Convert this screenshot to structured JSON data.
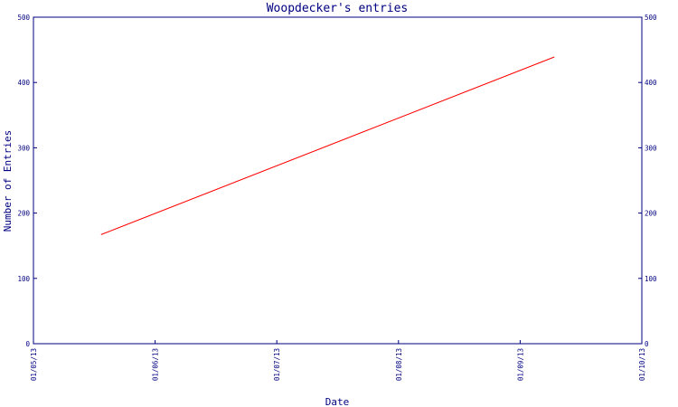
{
  "chart_data": {
    "type": "line",
    "title": "Woopdecker's entries",
    "xlabel": "Date",
    "ylabel": "Number of Entries",
    "x_ticks": [
      "01/05/13",
      "01/06/13",
      "01/07/13",
      "01/08/13",
      "01/09/13",
      "01/10/13"
    ],
    "y_ticks": [
      "0",
      "100",
      "200",
      "300",
      "400",
      "500"
    ],
    "ylim": [
      0,
      500
    ],
    "xlim": [
      "2013-05-01",
      "2013-10-01"
    ],
    "series": [
      {
        "x": [
          "2013-05-18",
          "2013-09-09"
        ],
        "values": [
          167,
          439
        ]
      }
    ],
    "grid": false,
    "colors": {
      "axes": "#000080",
      "text": "#000080",
      "line": "#ff0000"
    }
  }
}
